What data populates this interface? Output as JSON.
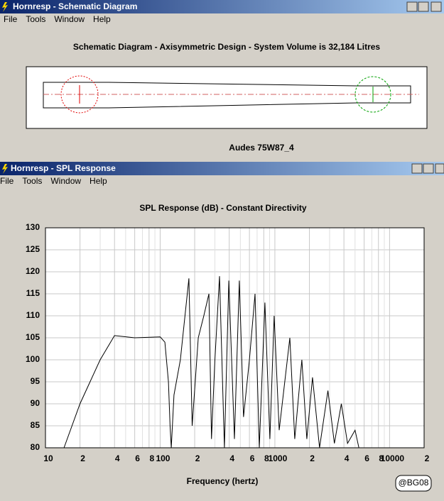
{
  "windows": [
    {
      "title": "Hornresp - Schematic Diagram",
      "menu": [
        "File",
        "Tools",
        "Window",
        "Help"
      ],
      "heading": "Schematic Diagram - Axisymmetric Design - System Volume is 32,184 Litres",
      "caption": "Audes 75W87_4"
    },
    {
      "title": "Hornresp - SPL Response",
      "menu": [
        "File",
        "Tools",
        "Window",
        "Help"
      ]
    }
  ],
  "chart_data": {
    "type": "line",
    "title": "SPL Response (dB) - Constant Directivity",
    "x_label": "Frequency (hertz)",
    "xscale": "log",
    "grid": true,
    "xlim": [
      10,
      20000
    ],
    "ylim": [
      80,
      130
    ],
    "xticks": [
      10,
      {
        "value": 20,
        "label": "2"
      },
      {
        "value": 40,
        "label": "4"
      },
      {
        "value": 60,
        "label": "6"
      },
      {
        "value": 80,
        "label": "8"
      },
      100,
      {
        "value": 200,
        "label": "2"
      },
      {
        "value": 400,
        "label": "4"
      },
      {
        "value": 600,
        "label": "6"
      },
      {
        "value": 800,
        "label": "8"
      },
      1000,
      {
        "value": 2000,
        "label": "2"
      },
      {
        "value": 4000,
        "label": "4"
      },
      {
        "value": 6000,
        "label": "6"
      },
      {
        "value": 8000,
        "label": "8"
      },
      10000,
      {
        "value": 20000,
        "label": "2"
      }
    ],
    "xminorticks": [
      30,
      50,
      70,
      90,
      300,
      500,
      700,
      900,
      3000,
      5000,
      7000,
      9000
    ],
    "yticks": [
      80,
      85,
      90,
      95,
      100,
      105,
      110,
      115,
      120,
      125,
      130
    ],
    "color": "#000000",
    "x": [
      14.5,
      20,
      30,
      40,
      60,
      100,
      110,
      118,
      122,
      125,
      132,
      150,
      178,
      190,
      215,
      240,
      266,
      280,
      300,
      329,
      363,
      397,
      444,
      490,
      533,
      600,
      671,
      731,
      819,
      905,
      986,
      1090,
      1350,
      1490,
      1718,
      1900,
      2128,
      2450,
      2900,
      3300,
      3800,
      4300,
      5000,
      5400
    ],
    "values": [
      80,
      90,
      100,
      105.5,
      105,
      105.2,
      104,
      95,
      85,
      80,
      92,
      100,
      118.5,
      85,
      105,
      110,
      115,
      82,
      100,
      119,
      80,
      118,
      82,
      118,
      87,
      100,
      115,
      80,
      113,
      82,
      110,
      84,
      105,
      82,
      100,
      82,
      96,
      80,
      93,
      81,
      90,
      81,
      84,
      80
    ]
  },
  "watermark": "@BG08"
}
